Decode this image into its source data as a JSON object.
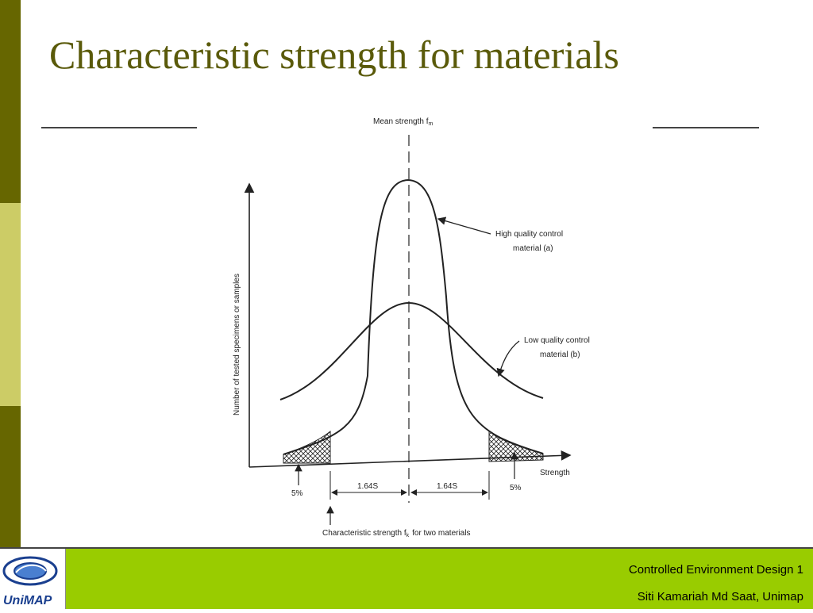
{
  "slide": {
    "title": "Characteristic strength for materials"
  },
  "figure": {
    "top_label": "Mean strength f",
    "top_label_sub": "m",
    "y_axis_label": "Number of tested specimens or samples",
    "x_axis_label": "Strength",
    "curve_a_label_line1": "High quality control",
    "curve_a_label_line2": "material (a)",
    "curve_b_label_line1": "Low quality control",
    "curve_b_label_line2": "material (b)",
    "dim_left_label": "1.64S",
    "dim_right_label": "1.64S",
    "pct_left_label": "5%",
    "pct_right_label": "5%",
    "bottom_label": "Characteristic strength f",
    "bottom_label_sub": "k",
    "bottom_label_tail": "for two materials"
  },
  "footer": {
    "line1": "Controlled Environment Design 1",
    "line2": "Siti Kamariah Md Saat, Unimap",
    "logo_text": "UniMAP",
    "colors": {
      "bar": "#99cc00",
      "title": "#5a5a0a",
      "accent_dark": "#666600",
      "accent_light": "#cccc66"
    }
  }
}
